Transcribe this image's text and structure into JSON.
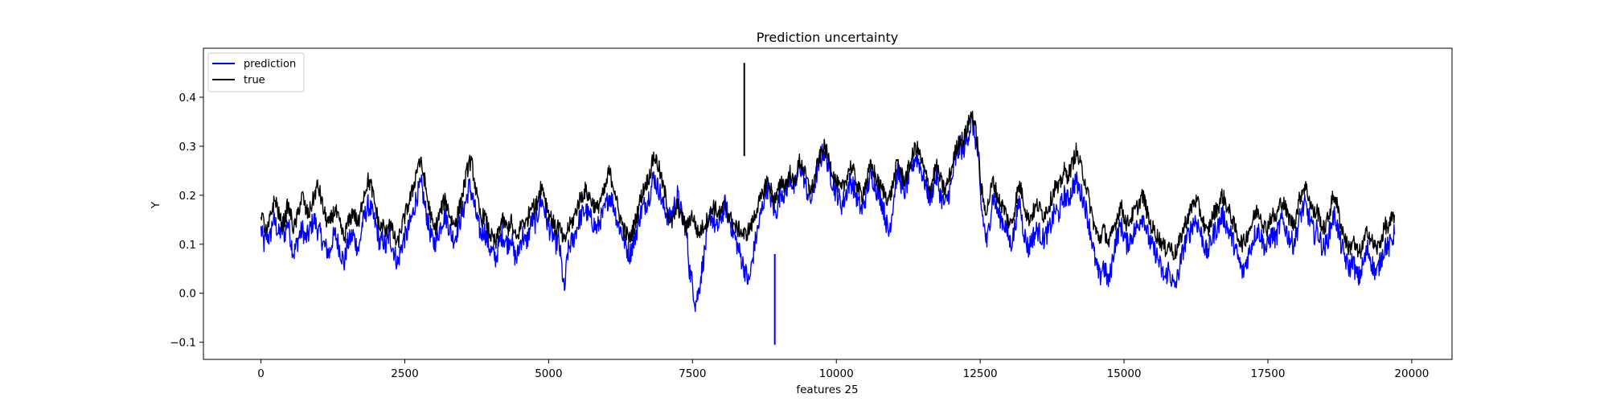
{
  "chart_data": {
    "type": "line",
    "title": "Prediction uncertainty",
    "xlabel": "features 25",
    "ylabel": "Y",
    "xlim": [
      -1000,
      20700
    ],
    "ylim": [
      -0.135,
      0.5
    ],
    "xticks": [
      0,
      2500,
      5000,
      7500,
      10000,
      12500,
      15000,
      17500,
      20000
    ],
    "xtick_labels": [
      "0",
      "2500",
      "5000",
      "7500",
      "10000",
      "12500",
      "15000",
      "17500",
      "20000"
    ],
    "yticks": [
      -0.1,
      0.0,
      0.1,
      0.2,
      0.3,
      0.4
    ],
    "ytick_labels": [
      "−0.1",
      "0.0",
      "0.1",
      "0.2",
      "0.3",
      "0.4"
    ],
    "grid": false,
    "legend_position": "upper left",
    "series": [
      {
        "name": "prediction",
        "color": "#0000ff",
        "x_start": 0,
        "x_end": 19700,
        "y": [
          0.13,
          0.1,
          0.12,
          0.11,
          0.15,
          0.14,
          0.12,
          0.13,
          0.12,
          0.15,
          0.11,
          0.08,
          0.1,
          0.12,
          0.13,
          0.11,
          0.12,
          0.14,
          0.15,
          0.13,
          0.12,
          0.1,
          0.09,
          0.08,
          0.11,
          0.12,
          0.1,
          0.08,
          0.06,
          0.1,
          0.11,
          0.12,
          0.1,
          0.09,
          0.14,
          0.16,
          0.18,
          0.17,
          0.15,
          0.13,
          0.1,
          0.11,
          0.09,
          0.12,
          0.1,
          0.08,
          0.06,
          0.09,
          0.11,
          0.12,
          0.14,
          0.16,
          0.19,
          0.21,
          0.22,
          0.18,
          0.15,
          0.12,
          0.1,
          0.11,
          0.13,
          0.15,
          0.16,
          0.14,
          0.12,
          0.11,
          0.13,
          0.15,
          0.17,
          0.19,
          0.22,
          0.2,
          0.17,
          0.14,
          0.12,
          0.13,
          0.11,
          0.09,
          0.08,
          0.07,
          0.1,
          0.12,
          0.11,
          0.1,
          0.12,
          0.08,
          0.07,
          0.1,
          0.12,
          0.1,
          0.12,
          0.15,
          0.14,
          0.16,
          0.19,
          0.18,
          0.15,
          0.13,
          0.12,
          0.1,
          0.11,
          0.06,
          0.0,
          0.08,
          0.1,
          0.11,
          0.13,
          0.15,
          0.16,
          0.17,
          0.16,
          0.15,
          0.14,
          0.13,
          0.15,
          0.16,
          0.18,
          0.2,
          0.19,
          0.17,
          0.14,
          0.13,
          0.11,
          0.09,
          0.08,
          0.1,
          0.12,
          0.15,
          0.17,
          0.18,
          0.19,
          0.21,
          0.24,
          0.22,
          0.21,
          0.18,
          0.17,
          0.15,
          0.16,
          0.18,
          0.2,
          0.17,
          0.15,
          0.13,
          0.05,
          0.02,
          -0.02,
          0.0,
          0.04,
          0.08,
          0.12,
          0.16,
          0.15,
          0.13,
          0.14,
          0.16,
          0.18,
          0.16,
          0.14,
          0.12,
          0.1,
          0.08,
          0.06,
          0.04,
          0.02,
          0.06,
          0.1,
          0.13,
          0.16,
          0.19,
          0.22,
          0.2,
          0.18,
          0.16,
          0.19,
          0.21,
          0.2,
          0.22,
          0.24,
          0.21,
          0.23,
          0.26,
          0.25,
          0.22,
          0.2,
          0.19,
          0.22,
          0.25,
          0.27,
          0.29,
          0.28,
          0.25,
          0.23,
          0.21,
          0.2,
          0.18,
          0.19,
          0.21,
          0.23,
          0.22,
          0.2,
          0.18,
          0.17,
          0.19,
          0.22,
          0.24,
          0.23,
          0.21,
          0.2,
          0.18,
          0.15,
          0.12,
          0.16,
          0.21,
          0.25,
          0.23,
          0.2,
          0.22,
          0.24,
          0.26,
          0.28,
          0.27,
          0.25,
          0.23,
          0.21,
          0.19,
          0.22,
          0.24,
          0.21,
          0.19,
          0.18,
          0.2,
          0.22,
          0.26,
          0.28,
          0.3,
          0.29,
          0.31,
          0.33,
          0.35,
          0.32,
          0.28,
          0.18,
          0.14,
          0.1,
          0.15,
          0.2,
          0.18,
          0.16,
          0.15,
          0.14,
          0.12,
          0.1,
          0.12,
          0.16,
          0.19,
          0.14,
          0.11,
          0.09,
          0.11,
          0.12,
          0.13,
          0.12,
          0.11,
          0.12,
          0.13,
          0.15,
          0.17,
          0.16,
          0.18,
          0.2,
          0.19,
          0.2,
          0.22,
          0.23,
          0.21,
          0.2,
          0.18,
          0.15,
          0.12,
          0.08,
          0.05,
          0.03,
          0.06,
          0.04,
          0.02,
          0.06,
          0.1,
          0.12,
          0.14,
          0.12,
          0.1,
          0.11,
          0.12,
          0.13,
          0.14,
          0.16,
          0.15,
          0.12,
          0.1,
          0.09,
          0.08,
          0.06,
          0.04,
          0.03,
          0.05,
          0.03,
          0.01,
          0.03,
          0.06,
          0.09,
          0.11,
          0.12,
          0.14,
          0.15,
          0.14,
          0.12,
          0.1,
          0.08,
          0.1,
          0.12,
          0.13,
          0.14,
          0.16,
          0.15,
          0.13,
          0.12,
          0.1,
          0.08,
          0.06,
          0.04,
          0.06,
          0.08,
          0.1,
          0.12,
          0.13,
          0.12,
          0.1,
          0.09,
          0.11,
          0.12,
          0.11,
          0.13,
          0.15,
          0.14,
          0.12,
          0.11,
          0.1,
          0.12,
          0.15,
          0.17,
          0.18,
          0.16,
          0.14,
          0.12,
          0.13,
          0.11,
          0.09,
          0.1,
          0.12,
          0.15,
          0.16,
          0.13,
          0.1,
          0.08,
          0.06,
          0.05,
          0.07,
          0.04,
          0.03,
          0.05,
          0.07,
          0.09,
          0.07,
          0.05,
          0.04,
          0.06,
          0.08,
          0.1,
          0.09,
          0.11,
          0.12
        ],
        "samples_per_point_note": ""
      },
      {
        "name": "true",
        "color": "#000000",
        "x_start": 0,
        "x_end": 19700,
        "y": [
          0.17,
          0.14,
          0.12,
          0.15,
          0.18,
          0.19,
          0.16,
          0.14,
          0.15,
          0.18,
          0.16,
          0.13,
          0.15,
          0.18,
          0.2,
          0.17,
          0.16,
          0.18,
          0.2,
          0.22,
          0.2,
          0.17,
          0.15,
          0.14,
          0.16,
          0.17,
          0.15,
          0.13,
          0.11,
          0.14,
          0.15,
          0.17,
          0.15,
          0.14,
          0.19,
          0.21,
          0.23,
          0.22,
          0.19,
          0.16,
          0.13,
          0.14,
          0.12,
          0.15,
          0.13,
          0.11,
          0.1,
          0.13,
          0.15,
          0.17,
          0.19,
          0.21,
          0.24,
          0.27,
          0.26,
          0.23,
          0.19,
          0.16,
          0.13,
          0.14,
          0.16,
          0.18,
          0.19,
          0.17,
          0.15,
          0.14,
          0.16,
          0.18,
          0.21,
          0.24,
          0.27,
          0.26,
          0.22,
          0.18,
          0.15,
          0.16,
          0.14,
          0.12,
          0.11,
          0.1,
          0.13,
          0.15,
          0.14,
          0.13,
          0.15,
          0.12,
          0.11,
          0.13,
          0.15,
          0.14,
          0.16,
          0.19,
          0.17,
          0.19,
          0.22,
          0.21,
          0.18,
          0.16,
          0.15,
          0.13,
          0.14,
          0.12,
          0.1,
          0.13,
          0.14,
          0.15,
          0.17,
          0.19,
          0.2,
          0.21,
          0.2,
          0.19,
          0.18,
          0.17,
          0.19,
          0.2,
          0.22,
          0.25,
          0.23,
          0.21,
          0.17,
          0.15,
          0.13,
          0.12,
          0.11,
          0.13,
          0.15,
          0.18,
          0.2,
          0.22,
          0.23,
          0.25,
          0.28,
          0.27,
          0.25,
          0.22,
          0.2,
          0.16,
          0.14,
          0.16,
          0.18,
          0.16,
          0.15,
          0.13,
          0.15,
          0.16,
          0.14,
          0.12,
          0.13,
          0.14,
          0.15,
          0.16,
          0.18,
          0.17,
          0.16,
          0.17,
          0.18,
          0.16,
          0.15,
          0.14,
          0.13,
          0.13,
          0.12,
          0.12,
          0.13,
          0.14,
          0.16,
          0.18,
          0.19,
          0.21,
          0.23,
          0.22,
          0.2,
          0.19,
          0.21,
          0.23,
          0.22,
          0.23,
          0.25,
          0.22,
          0.24,
          0.27,
          0.26,
          0.24,
          0.22,
          0.21,
          0.23,
          0.26,
          0.28,
          0.3,
          0.29,
          0.27,
          0.25,
          0.23,
          0.22,
          0.21,
          0.22,
          0.24,
          0.26,
          0.25,
          0.23,
          0.21,
          0.2,
          0.22,
          0.24,
          0.26,
          0.25,
          0.23,
          0.22,
          0.21,
          0.2,
          0.19,
          0.21,
          0.24,
          0.27,
          0.25,
          0.23,
          0.24,
          0.26,
          0.28,
          0.3,
          0.29,
          0.27,
          0.25,
          0.23,
          0.21,
          0.24,
          0.26,
          0.24,
          0.22,
          0.21,
          0.23,
          0.25,
          0.28,
          0.3,
          0.32,
          0.31,
          0.33,
          0.35,
          0.37,
          0.34,
          0.3,
          0.22,
          0.18,
          0.17,
          0.2,
          0.23,
          0.21,
          0.19,
          0.18,
          0.17,
          0.15,
          0.14,
          0.16,
          0.2,
          0.22,
          0.2,
          0.17,
          0.15,
          0.16,
          0.17,
          0.18,
          0.17,
          0.16,
          0.17,
          0.18,
          0.2,
          0.22,
          0.21,
          0.23,
          0.25,
          0.24,
          0.25,
          0.27,
          0.29,
          0.27,
          0.25,
          0.23,
          0.2,
          0.17,
          0.14,
          0.12,
          0.11,
          0.13,
          0.12,
          0.1,
          0.12,
          0.14,
          0.16,
          0.18,
          0.16,
          0.14,
          0.15,
          0.16,
          0.17,
          0.18,
          0.2,
          0.19,
          0.16,
          0.14,
          0.13,
          0.12,
          0.11,
          0.1,
          0.09,
          0.1,
          0.09,
          0.08,
          0.09,
          0.11,
          0.13,
          0.15,
          0.16,
          0.18,
          0.19,
          0.18,
          0.16,
          0.14,
          0.12,
          0.14,
          0.16,
          0.17,
          0.18,
          0.2,
          0.19,
          0.17,
          0.16,
          0.14,
          0.12,
          0.11,
          0.1,
          0.11,
          0.13,
          0.14,
          0.16,
          0.17,
          0.16,
          0.14,
          0.13,
          0.15,
          0.16,
          0.15,
          0.17,
          0.19,
          0.18,
          0.16,
          0.15,
          0.14,
          0.16,
          0.19,
          0.21,
          0.22,
          0.2,
          0.18,
          0.16,
          0.17,
          0.15,
          0.13,
          0.14,
          0.16,
          0.19,
          0.2,
          0.17,
          0.14,
          0.12,
          0.1,
          0.09,
          0.11,
          0.09,
          0.08,
          0.09,
          0.11,
          0.13,
          0.11,
          0.1,
          0.09,
          0.1,
          0.12,
          0.14,
          0.13,
          0.15,
          0.16
        ]
      }
    ]
  },
  "legend": {
    "items": [
      {
        "label": "prediction",
        "color": "#0000ff"
      },
      {
        "label": "true",
        "color": "#000000"
      }
    ]
  }
}
